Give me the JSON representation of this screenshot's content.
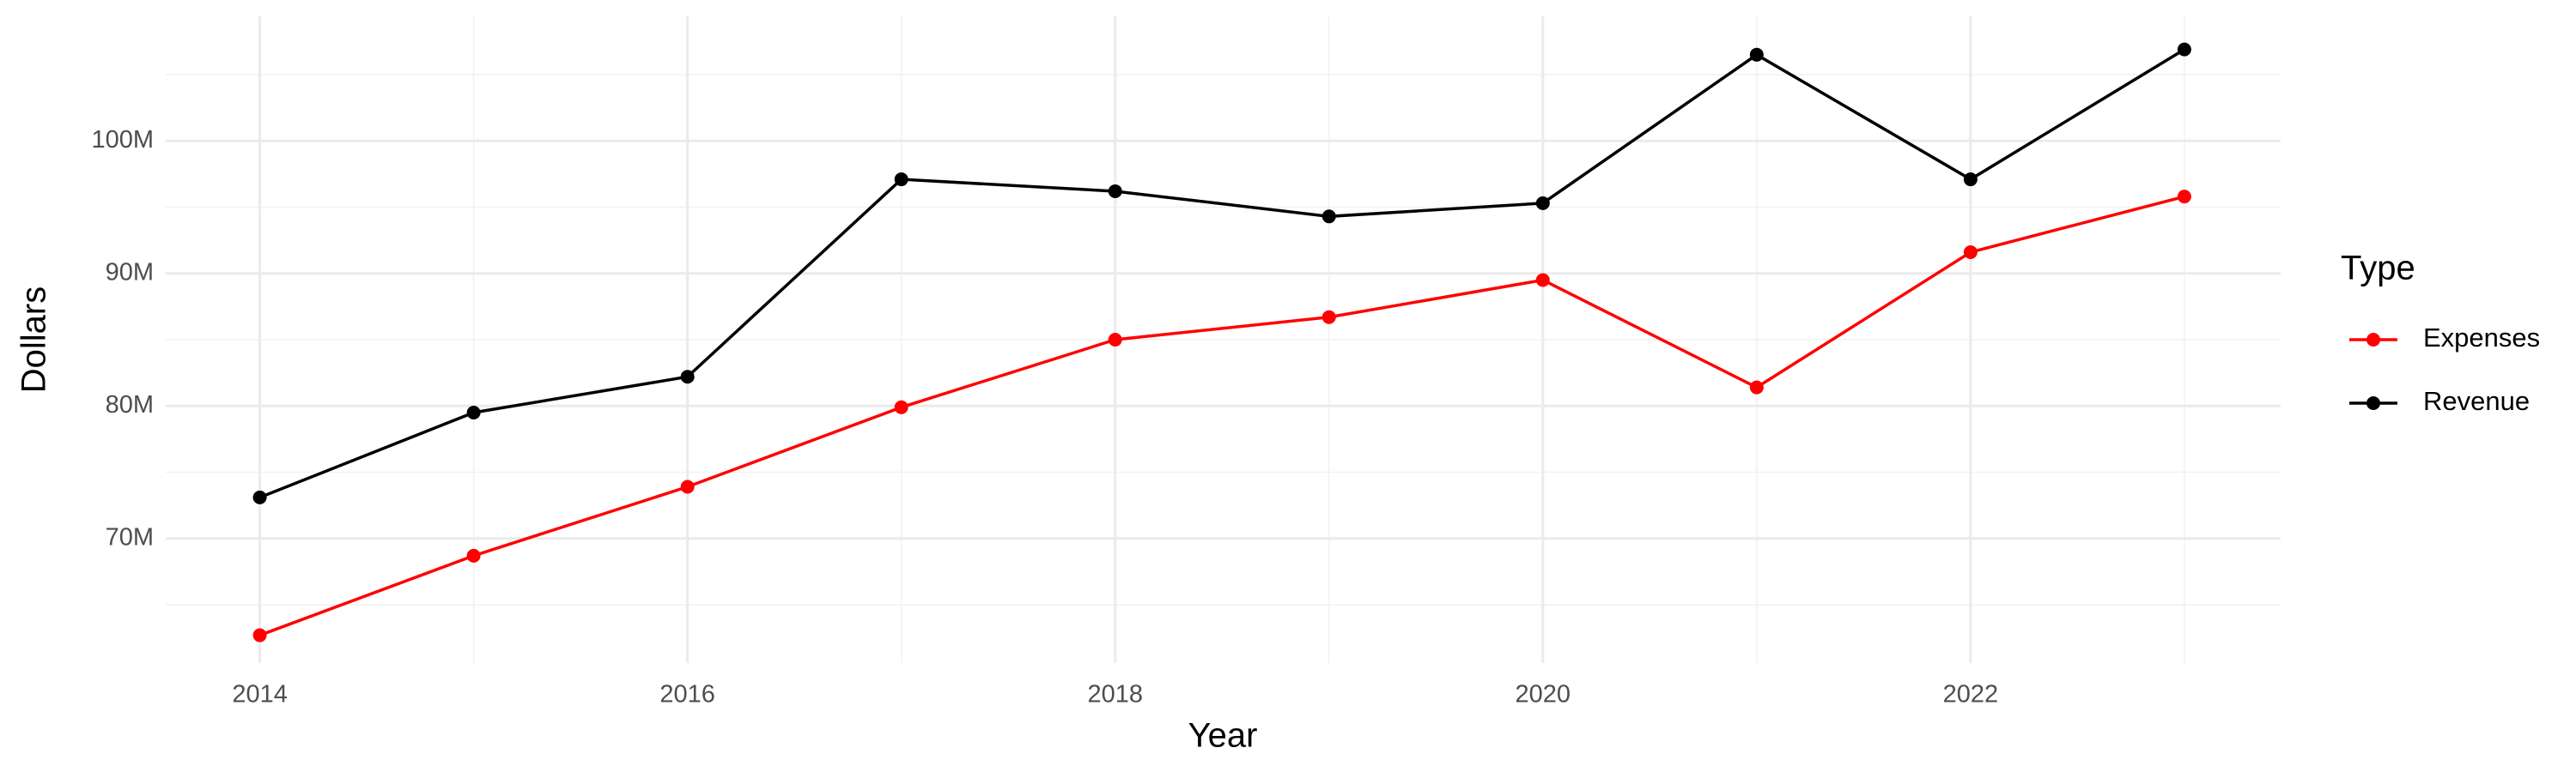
{
  "chart_data": {
    "type": "line",
    "x_label": "Year",
    "y_label": "Dollars",
    "legend_title": "Type",
    "x": [
      2014,
      2015,
      2016,
      2017,
      2018,
      2019,
      2020,
      2021,
      2022,
      2023
    ],
    "series": [
      {
        "name": "Expenses",
        "color": "#ff0000",
        "values": [
          62700000,
          68700000,
          73900000,
          79900000,
          85000000,
          86700000,
          89500000,
          81400000,
          91600000,
          95800000
        ]
      },
      {
        "name": "Revenue",
        "color": "#000000",
        "values": [
          73100000,
          79500000,
          82200000,
          97100000,
          96200000,
          94300000,
          95300000,
          106500000,
          97100000,
          106900000
        ]
      }
    ],
    "xlim": [
      2013.56,
      2023.45
    ],
    "xticks": [
      2014,
      2016,
      2018,
      2020,
      2022
    ],
    "ylim": [
      60600000,
      109400000
    ],
    "yticks": [
      {
        "value": 70000000,
        "label": "70M"
      },
      {
        "value": 80000000,
        "label": "80M"
      },
      {
        "value": 90000000,
        "label": "90M"
      },
      {
        "value": 100000000,
        "label": "100M"
      }
    ],
    "grid": true,
    "legend_position": "right"
  }
}
